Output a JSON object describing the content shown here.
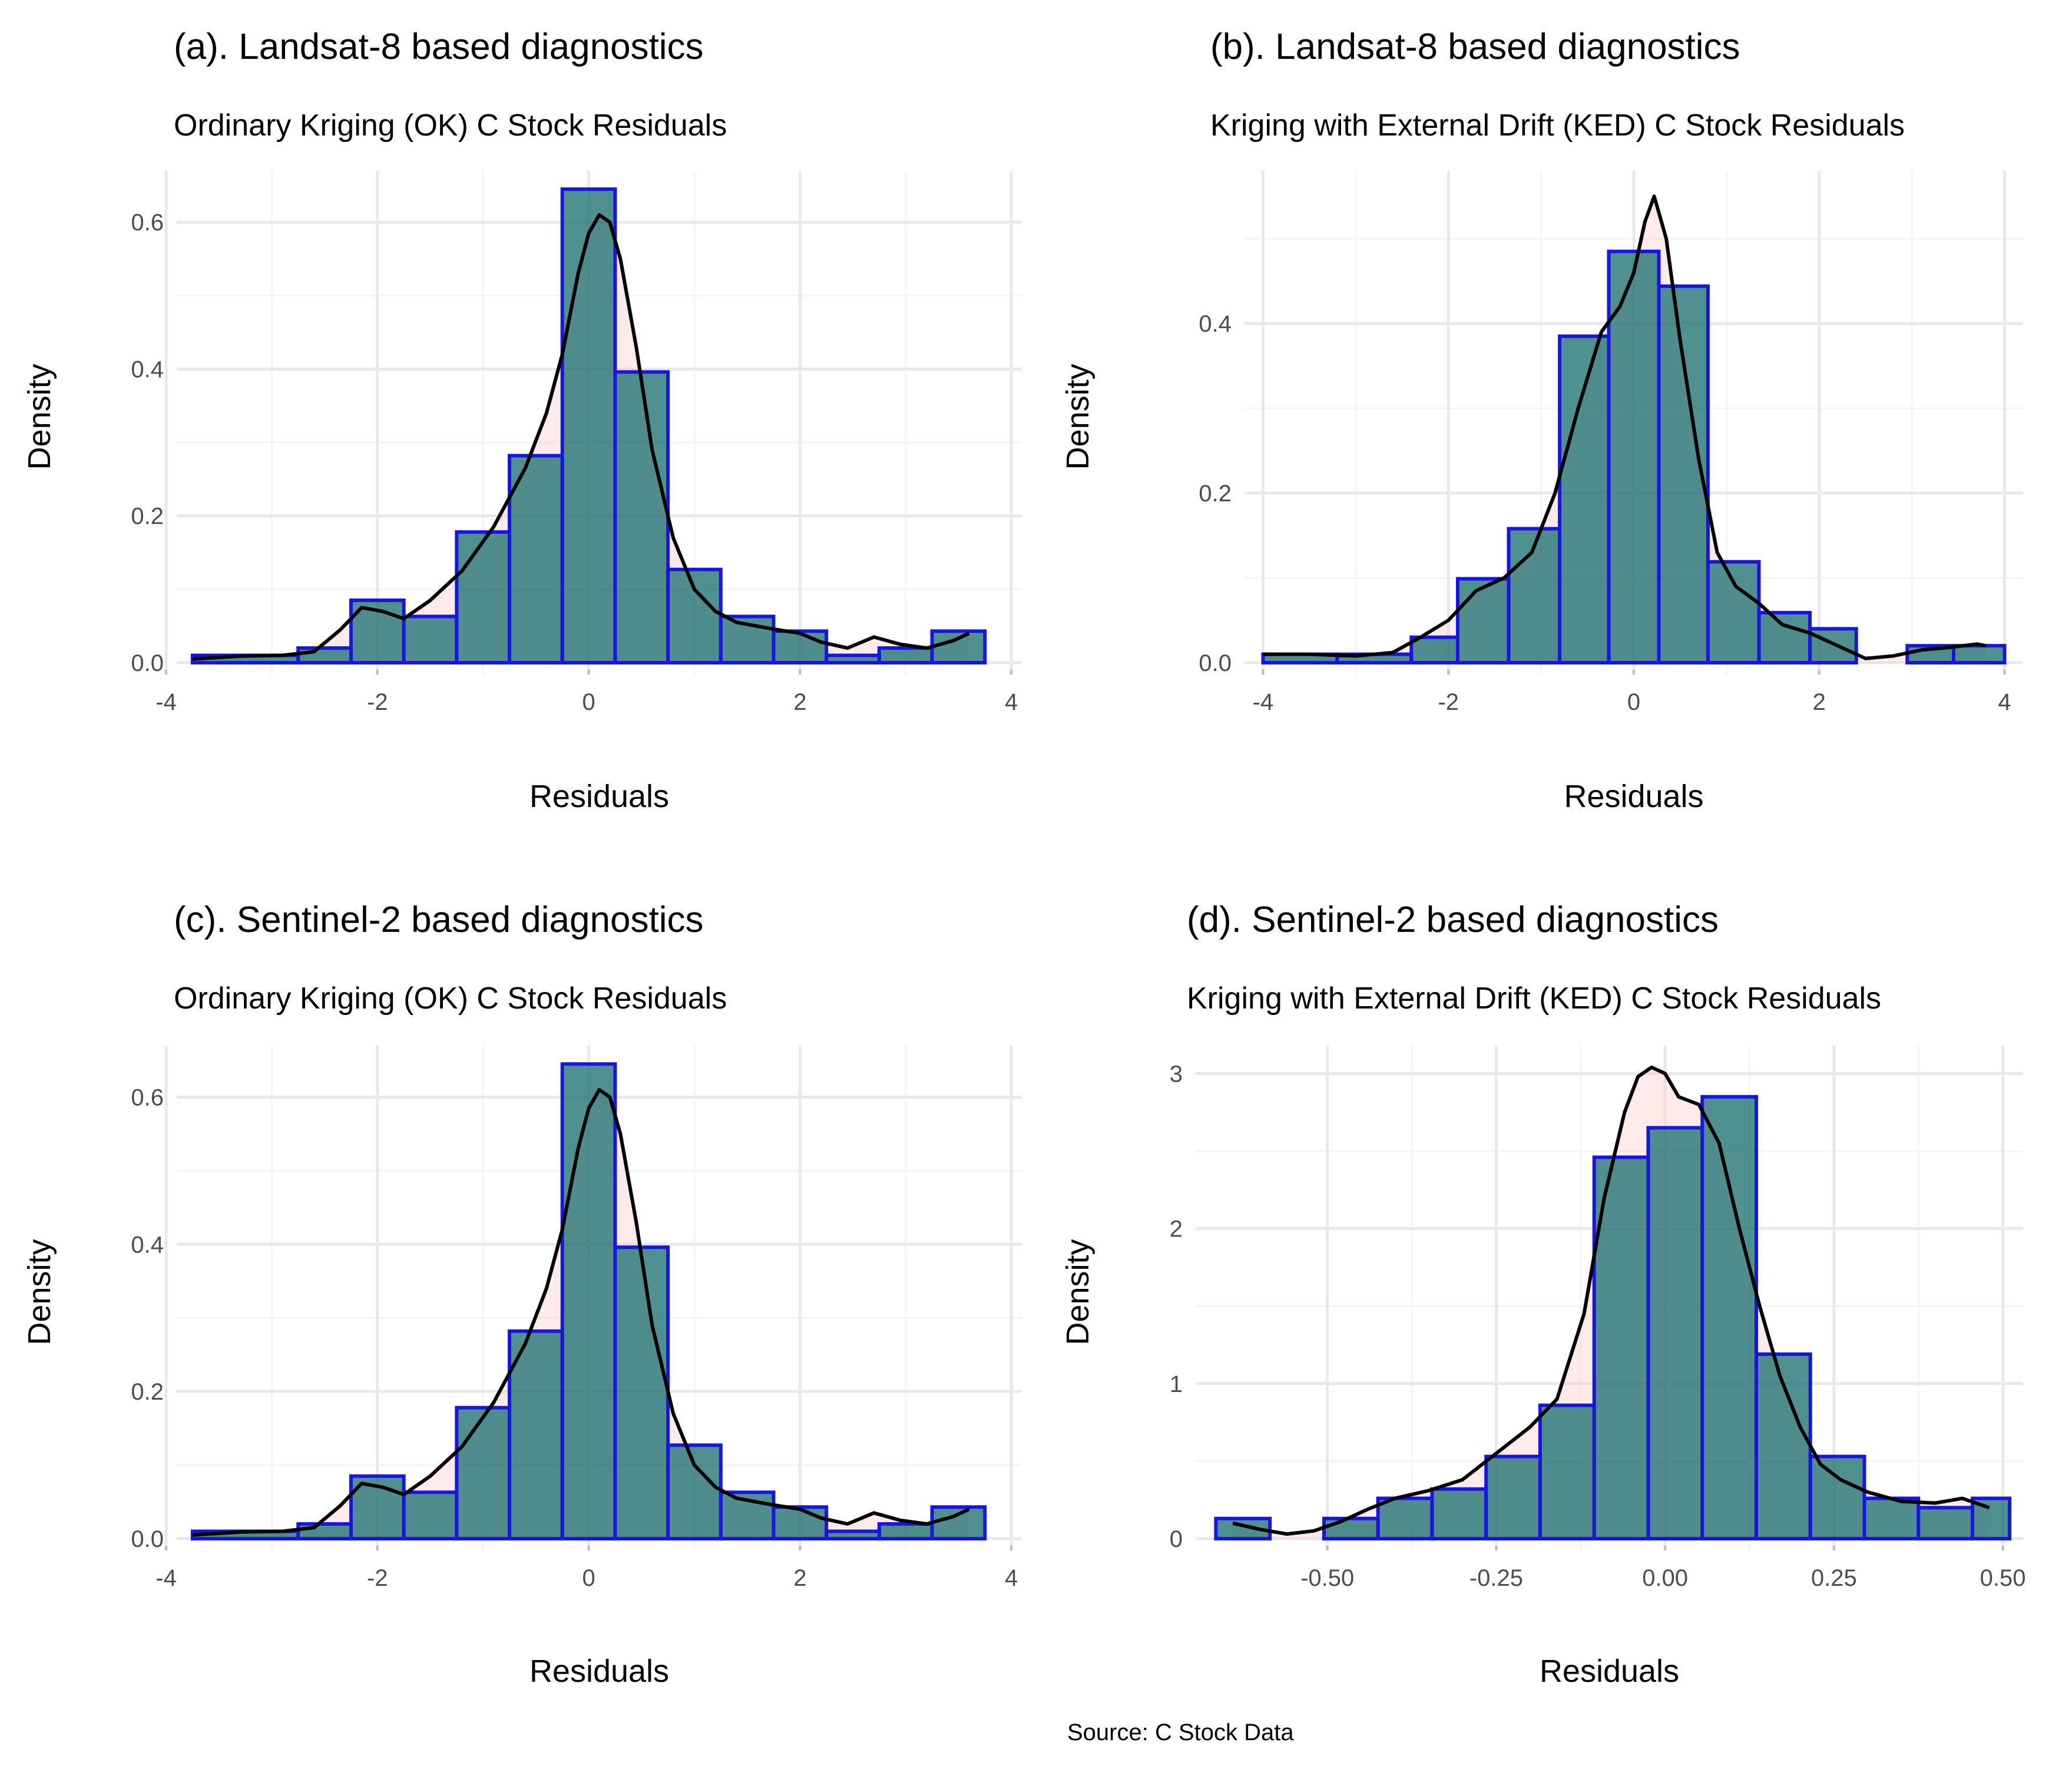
{
  "caption": "Source: C Stock Data",
  "colors": {
    "bar_fill": "#1f8a8a",
    "bar_outline": "#1a14e0",
    "density_line": "#000000",
    "density_fill": "#ffd6d6",
    "grid": "#e9e9e9"
  },
  "chart_data": [
    {
      "type": "bar",
      "title": "(a). Landsat-8 based diagnostics",
      "subtitle": "Ordinary Kriging (OK) C Stock Residuals",
      "xlabel": "Residuals",
      "ylabel": "Density",
      "xlim": [
        -3.9,
        4.1
      ],
      "ylim": [
        0,
        0.67
      ],
      "x_ticks": [
        -4,
        -2,
        0,
        2,
        4
      ],
      "x_tick_labels": [
        "-4",
        "-2",
        "0",
        "2",
        "4"
      ],
      "y_ticks": [
        0,
        0.2,
        0.4,
        0.6
      ],
      "y_tick_labels": [
        "0.0",
        "0.2",
        "0.4",
        "0.6"
      ],
      "bins": [
        {
          "x0": -3.75,
          "x1": -2.75,
          "density": 0.01
        },
        {
          "x0": -2.75,
          "x1": -2.25,
          "density": 0.02
        },
        {
          "x0": -2.25,
          "x1": -1.75,
          "density": 0.085
        },
        {
          "x0": -1.75,
          "x1": -1.25,
          "density": 0.063
        },
        {
          "x0": -1.25,
          "x1": -0.75,
          "density": 0.178
        },
        {
          "x0": -0.75,
          "x1": -0.25,
          "density": 0.282
        },
        {
          "x0": -0.25,
          "x1": 0.25,
          "density": 0.645
        },
        {
          "x0": 0.25,
          "x1": 0.75,
          "density": 0.396
        },
        {
          "x0": 0.75,
          "x1": 1.25,
          "density": 0.127
        },
        {
          "x0": 1.25,
          "x1": 1.75,
          "density": 0.063
        },
        {
          "x0": 1.75,
          "x1": 2.25,
          "density": 0.043
        },
        {
          "x0": 2.25,
          "x1": 2.75,
          "density": 0.01
        },
        {
          "x0": 2.75,
          "x1": 3.25,
          "density": 0.02
        },
        {
          "x0": 3.25,
          "x1": 3.75,
          "density": 0.043
        }
      ],
      "density_curve": {
        "x": [
          -3.75,
          -3.3,
          -2.9,
          -2.6,
          -2.35,
          -2.15,
          -1.95,
          -1.75,
          -1.5,
          -1.2,
          -0.9,
          -0.6,
          -0.4,
          -0.25,
          -0.1,
          0.0,
          0.1,
          0.2,
          0.3,
          0.45,
          0.6,
          0.8,
          1.0,
          1.2,
          1.4,
          1.7,
          2.0,
          2.2,
          2.45,
          2.7,
          2.95,
          3.2,
          3.45,
          3.6
        ],
        "y": [
          0.005,
          0.009,
          0.01,
          0.015,
          0.045,
          0.075,
          0.07,
          0.06,
          0.085,
          0.125,
          0.185,
          0.265,
          0.34,
          0.42,
          0.53,
          0.585,
          0.61,
          0.6,
          0.55,
          0.43,
          0.29,
          0.17,
          0.1,
          0.07,
          0.055,
          0.047,
          0.04,
          0.028,
          0.02,
          0.035,
          0.025,
          0.02,
          0.03,
          0.04
        ]
      }
    },
    {
      "type": "bar",
      "title": "(b). Landsat-8 based diagnostics",
      "subtitle": "Kriging with External Drift (KED) C Stock Residuals",
      "xlabel": "Residuals",
      "ylabel": "Density",
      "xlim": [
        -4.2,
        4.2
      ],
      "ylim": [
        0,
        0.58
      ],
      "x_ticks": [
        -4,
        -2,
        0,
        2,
        4
      ],
      "x_tick_labels": [
        "-4",
        "-2",
        "0",
        "2",
        "4"
      ],
      "y_ticks": [
        0,
        0.2,
        0.4
      ],
      "y_tick_labels": [
        "0.0",
        "0.2",
        "0.4"
      ],
      "bins": [
        {
          "x0": -4.0,
          "x1": -3.2,
          "density": 0.01
        },
        {
          "x0": -3.2,
          "x1": -2.4,
          "density": 0.01
        },
        {
          "x0": -2.4,
          "x1": -1.9,
          "density": 0.03
        },
        {
          "x0": -1.9,
          "x1": -1.35,
          "density": 0.099
        },
        {
          "x0": -1.35,
          "x1": -0.8,
          "density": 0.158
        },
        {
          "x0": -0.8,
          "x1": -0.27,
          "density": 0.385
        },
        {
          "x0": -0.27,
          "x1": 0.27,
          "density": 0.485
        },
        {
          "x0": 0.27,
          "x1": 0.8,
          "density": 0.444
        },
        {
          "x0": 0.8,
          "x1": 1.35,
          "density": 0.119
        },
        {
          "x0": 1.35,
          "x1": 1.9,
          "density": 0.059
        },
        {
          "x0": 1.9,
          "x1": 2.4,
          "density": 0.04
        },
        {
          "x0": 2.4,
          "x1": 2.95,
          "density": 0.0
        },
        {
          "x0": 2.95,
          "x1": 3.45,
          "density": 0.02
        },
        {
          "x0": 3.45,
          "x1": 4.0,
          "density": 0.02
        }
      ],
      "density_curve": {
        "x": [
          -4.0,
          -3.5,
          -3.0,
          -2.6,
          -2.3,
          -2.0,
          -1.7,
          -1.4,
          -1.1,
          -0.85,
          -0.6,
          -0.35,
          -0.15,
          0.0,
          0.12,
          0.22,
          0.35,
          0.5,
          0.7,
          0.9,
          1.1,
          1.35,
          1.6,
          1.9,
          2.2,
          2.5,
          2.8,
          3.1,
          3.4,
          3.7,
          3.8
        ],
        "y": [
          0.01,
          0.01,
          0.008,
          0.012,
          0.03,
          0.05,
          0.085,
          0.1,
          0.13,
          0.2,
          0.3,
          0.39,
          0.42,
          0.46,
          0.52,
          0.55,
          0.5,
          0.38,
          0.24,
          0.13,
          0.09,
          0.07,
          0.045,
          0.035,
          0.02,
          0.005,
          0.008,
          0.015,
          0.018,
          0.022,
          0.02
        ]
      }
    },
    {
      "type": "bar",
      "title": "(c). Sentinel-2 based diagnostics",
      "subtitle": "Ordinary Kriging (OK) C Stock Residuals",
      "xlabel": "Residuals",
      "ylabel": "Density",
      "xlim": [
        -3.9,
        4.1
      ],
      "ylim": [
        0,
        0.67
      ],
      "x_ticks": [
        -4,
        -2,
        0,
        2,
        4
      ],
      "x_tick_labels": [
        "-4",
        "-2",
        "0",
        "2",
        "4"
      ],
      "y_ticks": [
        0,
        0.2,
        0.4,
        0.6
      ],
      "y_tick_labels": [
        "0.0",
        "0.2",
        "0.4",
        "0.6"
      ],
      "bins": [
        {
          "x0": -3.75,
          "x1": -2.75,
          "density": 0.01
        },
        {
          "x0": -2.75,
          "x1": -2.25,
          "density": 0.02
        },
        {
          "x0": -2.25,
          "x1": -1.75,
          "density": 0.085
        },
        {
          "x0": -1.75,
          "x1": -1.25,
          "density": 0.063
        },
        {
          "x0": -1.25,
          "x1": -0.75,
          "density": 0.178
        },
        {
          "x0": -0.75,
          "x1": -0.25,
          "density": 0.282
        },
        {
          "x0": -0.25,
          "x1": 0.25,
          "density": 0.645
        },
        {
          "x0": 0.25,
          "x1": 0.75,
          "density": 0.396
        },
        {
          "x0": 0.75,
          "x1": 1.25,
          "density": 0.127
        },
        {
          "x0": 1.25,
          "x1": 1.75,
          "density": 0.063
        },
        {
          "x0": 1.75,
          "x1": 2.25,
          "density": 0.043
        },
        {
          "x0": 2.25,
          "x1": 2.75,
          "density": 0.01
        },
        {
          "x0": 2.75,
          "x1": 3.25,
          "density": 0.02
        },
        {
          "x0": 3.25,
          "x1": 3.75,
          "density": 0.043
        }
      ],
      "density_curve": {
        "x": [
          -3.75,
          -3.3,
          -2.9,
          -2.6,
          -2.35,
          -2.15,
          -1.95,
          -1.75,
          -1.5,
          -1.2,
          -0.9,
          -0.6,
          -0.4,
          -0.25,
          -0.1,
          0.0,
          0.1,
          0.2,
          0.3,
          0.45,
          0.6,
          0.8,
          1.0,
          1.2,
          1.4,
          1.7,
          2.0,
          2.2,
          2.45,
          2.7,
          2.95,
          3.2,
          3.45,
          3.6
        ],
        "y": [
          0.005,
          0.009,
          0.01,
          0.015,
          0.045,
          0.075,
          0.07,
          0.06,
          0.085,
          0.125,
          0.185,
          0.265,
          0.34,
          0.42,
          0.53,
          0.585,
          0.61,
          0.6,
          0.55,
          0.43,
          0.29,
          0.17,
          0.1,
          0.07,
          0.055,
          0.047,
          0.04,
          0.028,
          0.02,
          0.035,
          0.025,
          0.02,
          0.03,
          0.04
        ]
      }
    },
    {
      "type": "bar",
      "title": "(d). Sentinel-2 based diagnostics",
      "subtitle": "Kriging with External Drift (KED) C Stock Residuals",
      "xlabel": "Residuals",
      "ylabel": "Density",
      "xlim": [
        -0.695,
        0.53
      ],
      "ylim": [
        0,
        3.18
      ],
      "x_ticks": [
        -0.5,
        -0.25,
        0.0,
        0.25,
        0.5
      ],
      "x_tick_labels": [
        "-0.50",
        "-0.25",
        "0.00",
        "0.25",
        "0.50"
      ],
      "y_ticks": [
        0,
        1,
        2,
        3
      ],
      "y_tick_labels": [
        "0",
        "1",
        "2",
        "3"
      ],
      "bins": [
        {
          "x0": -0.665,
          "x1": -0.585,
          "density": 0.13
        },
        {
          "x0": -0.585,
          "x1": -0.505,
          "density": 0.0
        },
        {
          "x0": -0.505,
          "x1": -0.425,
          "density": 0.13
        },
        {
          "x0": -0.425,
          "x1": -0.345,
          "density": 0.26
        },
        {
          "x0": -0.345,
          "x1": -0.265,
          "density": 0.32
        },
        {
          "x0": -0.265,
          "x1": -0.185,
          "density": 0.53
        },
        {
          "x0": -0.185,
          "x1": -0.105,
          "density": 0.86
        },
        {
          "x0": -0.105,
          "x1": -0.025,
          "density": 2.46
        },
        {
          "x0": -0.025,
          "x1": 0.055,
          "density": 2.65
        },
        {
          "x0": 0.055,
          "x1": 0.135,
          "density": 2.85
        },
        {
          "x0": 0.135,
          "x1": 0.215,
          "density": 1.19
        },
        {
          "x0": 0.215,
          "x1": 0.295,
          "density": 0.53
        },
        {
          "x0": 0.295,
          "x1": 0.375,
          "density": 0.26
        },
        {
          "x0": 0.375,
          "x1": 0.455,
          "density": 0.2
        },
        {
          "x0": 0.455,
          "x1": 0.51,
          "density": 0.26
        }
      ],
      "density_curve": {
        "x": [
          -0.64,
          -0.6,
          -0.56,
          -0.52,
          -0.48,
          -0.44,
          -0.4,
          -0.35,
          -0.3,
          -0.25,
          -0.2,
          -0.16,
          -0.12,
          -0.09,
          -0.06,
          -0.04,
          -0.02,
          0.0,
          0.02,
          0.05,
          0.08,
          0.11,
          0.14,
          0.17,
          0.2,
          0.23,
          0.26,
          0.3,
          0.35,
          0.4,
          0.44,
          0.48
        ],
        "y": [
          0.1,
          0.06,
          0.03,
          0.05,
          0.11,
          0.19,
          0.26,
          0.31,
          0.38,
          0.55,
          0.72,
          0.9,
          1.45,
          2.2,
          2.75,
          2.98,
          3.04,
          3.0,
          2.85,
          2.8,
          2.55,
          2.0,
          1.5,
          1.05,
          0.72,
          0.48,
          0.38,
          0.3,
          0.24,
          0.23,
          0.26,
          0.2
        ]
      }
    }
  ]
}
